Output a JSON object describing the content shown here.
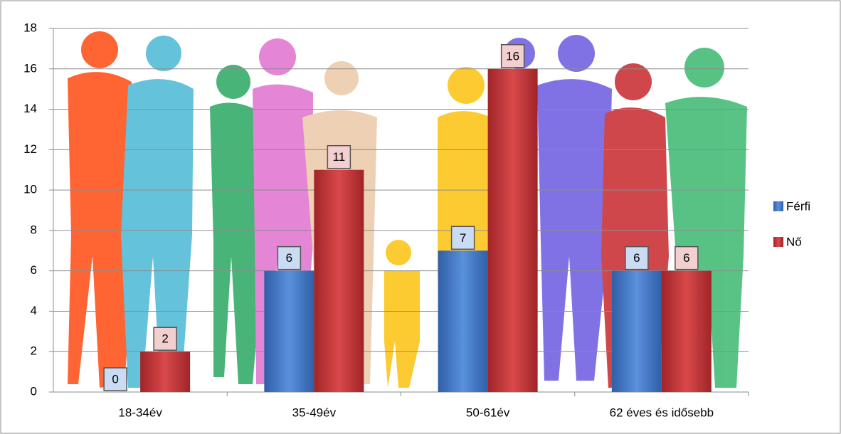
{
  "chart_data": {
    "type": "bar",
    "categories": [
      "18-34év",
      "35-49év",
      "50-61év",
      "62 éves és idősebb"
    ],
    "series": [
      {
        "name": "Férfi",
        "color": "#4a7fcf",
        "values": [
          0,
          6,
          7,
          6
        ]
      },
      {
        "name": "Nő",
        "color": "#c9393b",
        "values": [
          2,
          11,
          16,
          6
        ]
      }
    ],
    "ylim": [
      0,
      18
    ],
    "yticks": [
      0,
      2,
      4,
      6,
      8,
      10,
      12,
      14,
      16,
      18
    ],
    "grid": true,
    "legend": "right"
  }
}
